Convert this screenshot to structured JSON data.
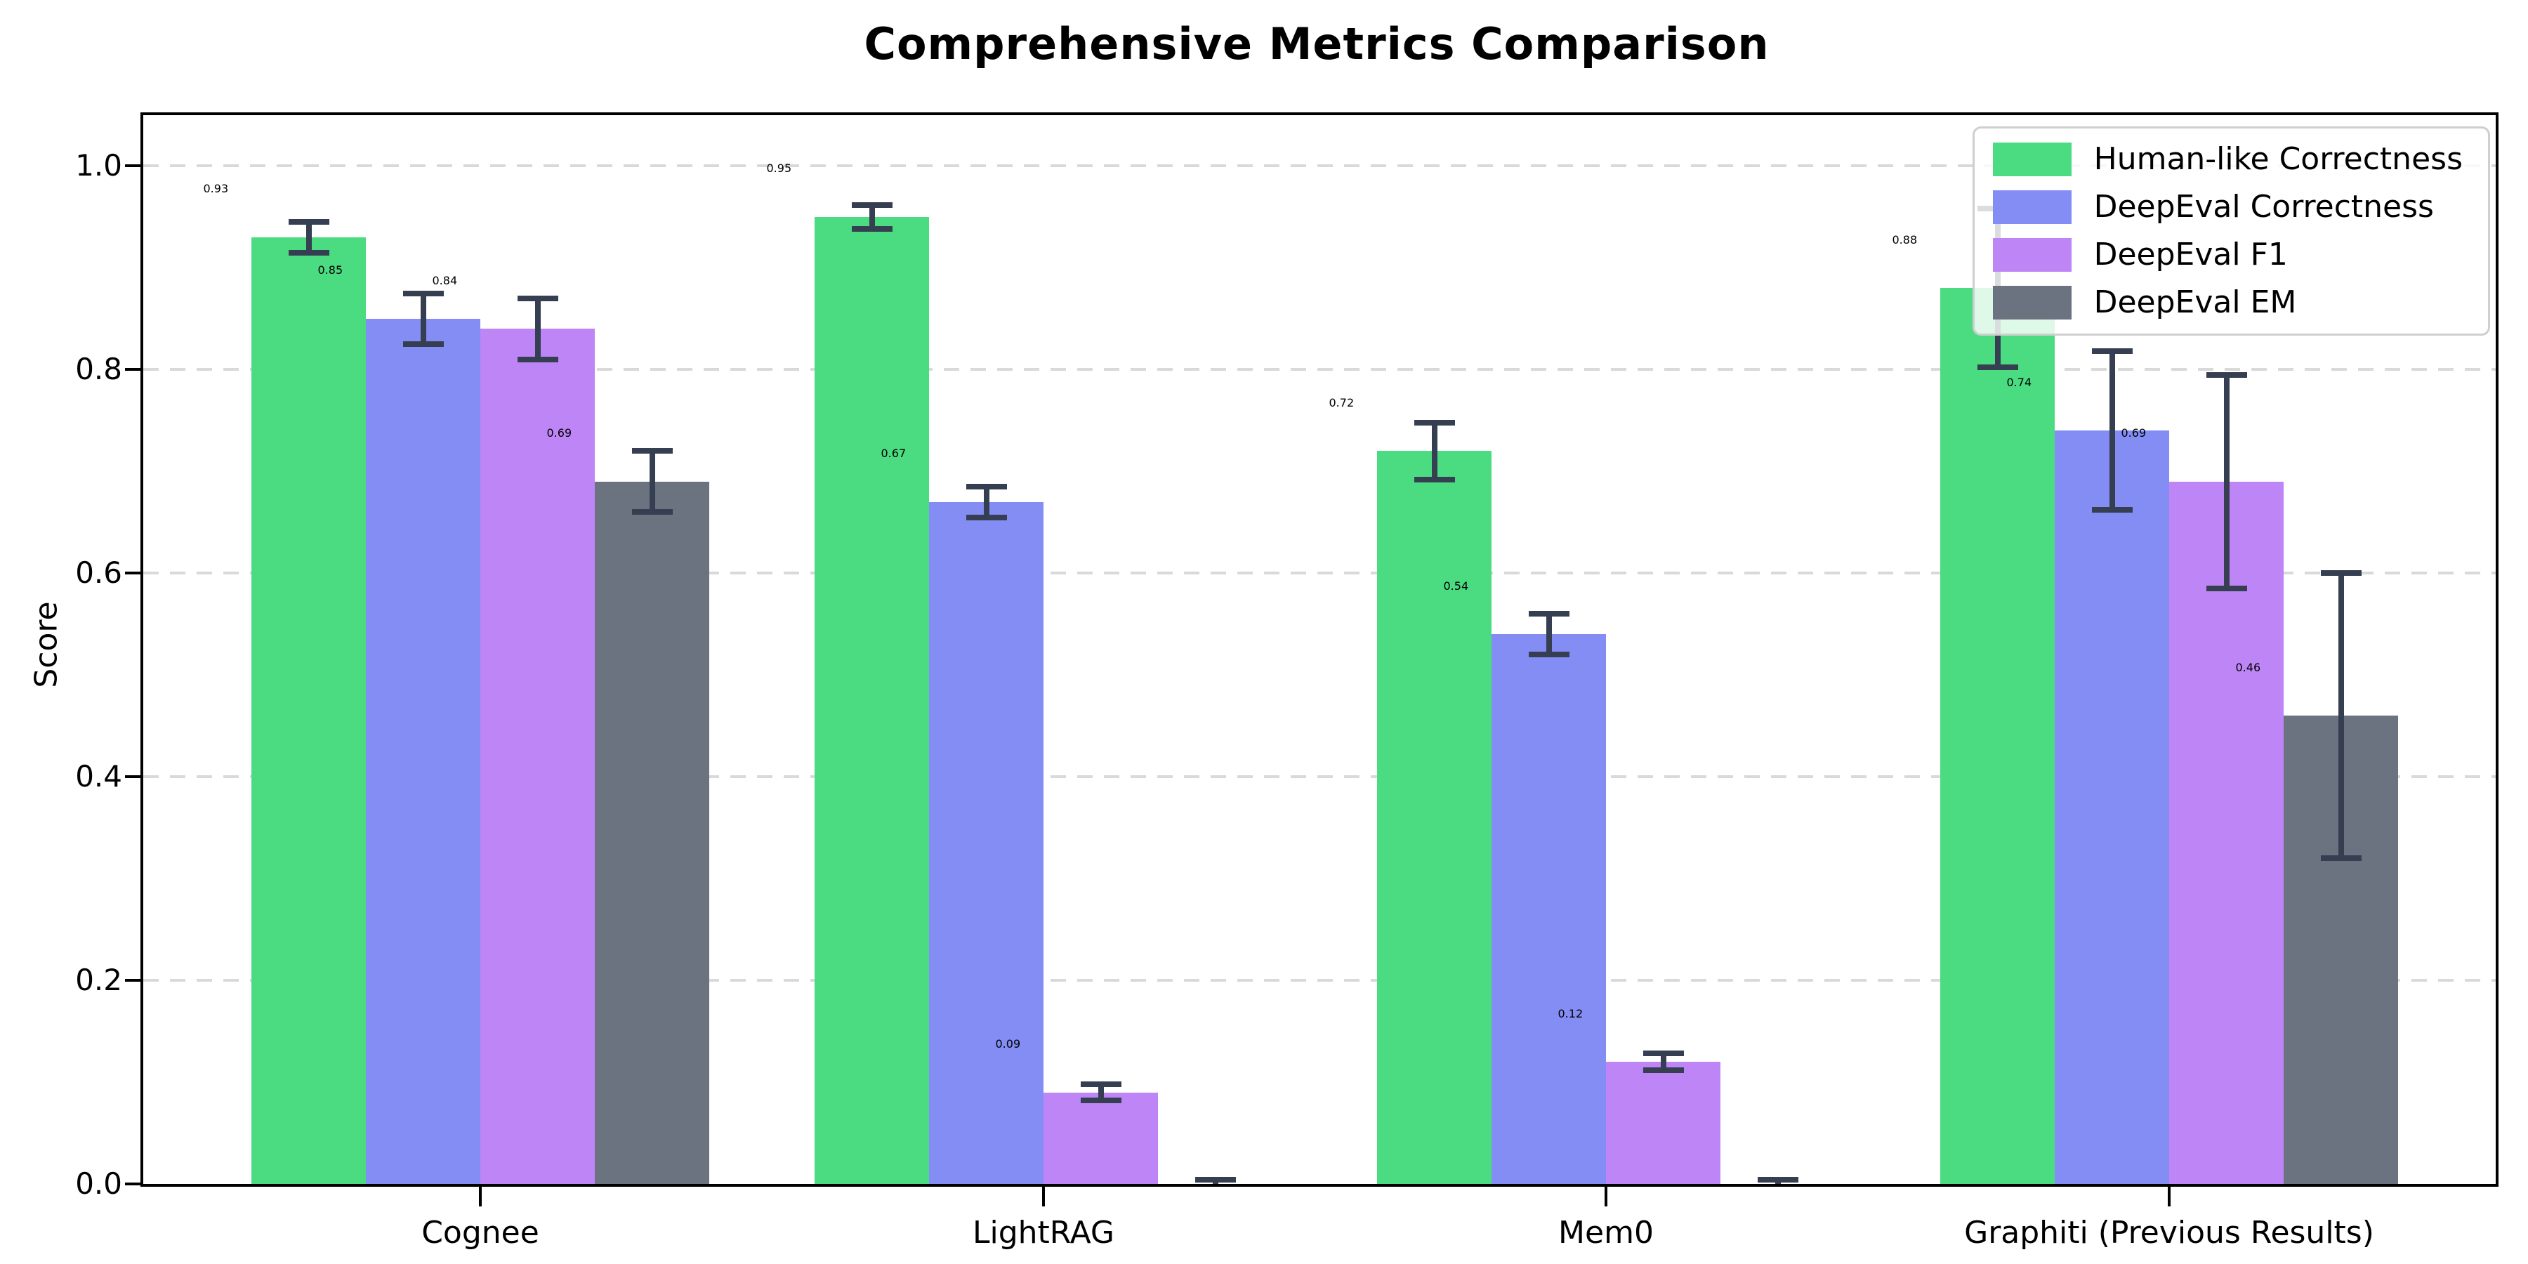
{
  "chart_data": {
    "type": "bar",
    "title": "Comprehensive Metrics Comparison",
    "ylabel": "Score",
    "xlabel": "",
    "categories": [
      "Cognee",
      "LightRAG",
      "Mem0",
      "Graphiti (Previous Results)"
    ],
    "series": [
      {
        "name": "Human-like Correctness",
        "color": "#4bdc82",
        "values": [
          0.93,
          0.95,
          0.72,
          0.88
        ],
        "errors": [
          0.015,
          0.012,
          0.028,
          0.078
        ]
      },
      {
        "name": "DeepEval Correctness",
        "color": "#838df4",
        "values": [
          0.85,
          0.67,
          0.54,
          0.74
        ],
        "errors": [
          0.025,
          0.015,
          0.02,
          0.078
        ]
      },
      {
        "name": "DeepEval F1",
        "color": "#be85f6",
        "values": [
          0.84,
          0.09,
          0.12,
          0.69
        ],
        "errors": [
          0.03,
          0.008,
          0.008,
          0.105
        ]
      },
      {
        "name": "DeepEval EM",
        "color": "#6b7280",
        "values": [
          0.69,
          0.0,
          0.0,
          0.46
        ],
        "errors": [
          0.03,
          0.004,
          0.004,
          0.14
        ]
      }
    ],
    "ylim": [
      0,
      1.05
    ],
    "yticks": [
      "0.0",
      "0.2",
      "0.4",
      "0.6",
      "0.8",
      "1.0"
    ],
    "grid": "horizontal-dashed",
    "legend_position": "upper right",
    "value_label_format": "two-decimals",
    "zero_bars_unlabeled": true
  },
  "colors": {
    "error_bar": "#353f51",
    "grid": "#d9d9d9",
    "spine": "#000000",
    "background": "#ffffff",
    "legend_border": "#cfcfcf"
  }
}
